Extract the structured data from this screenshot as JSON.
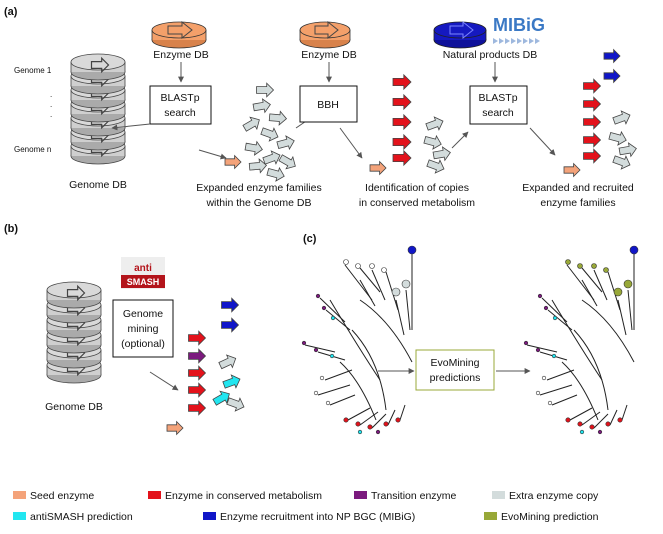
{
  "panels": {
    "a": "(a)",
    "b": "(b)",
    "c": "(c)"
  },
  "panel_a": {
    "genome_labels": {
      "genome1": "Genome 1",
      "dots": ".",
      "genome_n": "Genome n"
    },
    "genome_db": "Genome DB",
    "enzyme_db_1": "Enzyme DB",
    "enzyme_db_2": "Enzyme DB",
    "mibig_logo": "MIBiG",
    "natural_products_db": "Natural products DB",
    "blastp_1": {
      "line1": "BLASTp",
      "line2": "search"
    },
    "bbh": "BBH",
    "blastp_2": {
      "line1": "BLASTp",
      "line2": "search"
    },
    "caption_1": {
      "line1": "Expanded enzyme families",
      "line2": "within the Genome DB"
    },
    "caption_2": {
      "line1": "Identification of copies",
      "line2": "in conserved metabolism"
    },
    "caption_3": {
      "line1": "Expanded and recruited",
      "line2": "enzyme families"
    }
  },
  "panel_b": {
    "antismash_logo": {
      "line1": "anti",
      "line2": "SMASH"
    },
    "genome_mining": {
      "line1": "Genome",
      "line2": "mining",
      "line3": "(optional)"
    },
    "genome_db": "Genome DB"
  },
  "panel_c": {
    "evomining": {
      "line1": "EvoMining",
      "line2": "predictions"
    }
  },
  "legend": [
    {
      "label": "Seed enzyme",
      "color": "#f4a37a"
    },
    {
      "label": "Enzyme in conserved metabolism",
      "color": "#e3121b"
    },
    {
      "label": "Transition enzyme",
      "color": "#7b1a7e"
    },
    {
      "label": "Extra enzyme copy",
      "color": "#d3dcdc"
    },
    {
      "label": "antiSMASH prediction",
      "color": "#22e6f0"
    },
    {
      "label": "Enzyme recruitment into NP BGC (MIBiG)",
      "color": "#1016c8"
    },
    {
      "label": "EvoMining prediction",
      "color": "#98a838"
    }
  ],
  "colors": {
    "seed": "#f4a37a",
    "conserved": "#e3121b",
    "transition": "#7b1a7e",
    "extra": "#d3dcdc",
    "antismash": "#22e6f0",
    "mibig": "#1016c8",
    "evomining": "#98a838",
    "db_orange": "#f4a06a",
    "db_blue": "#1519c0",
    "antismash_red": "#b3141b"
  }
}
